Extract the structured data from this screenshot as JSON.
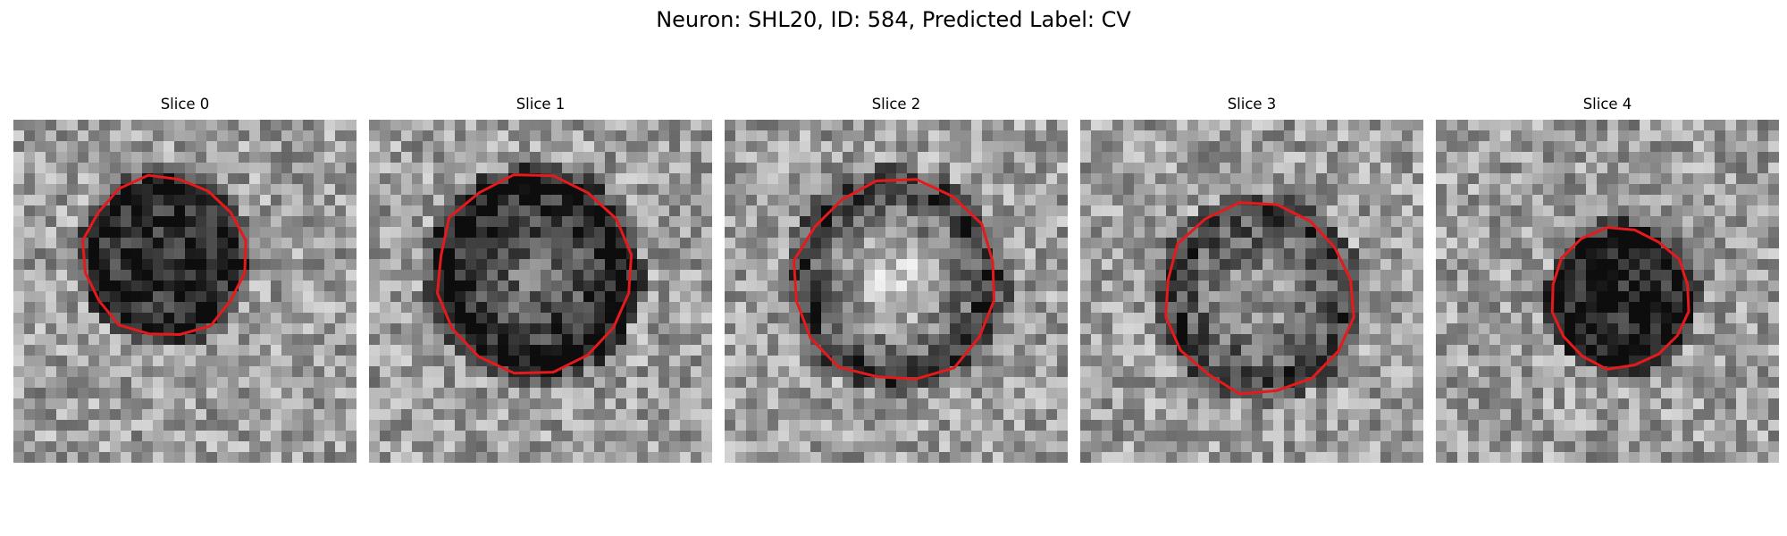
{
  "figure": {
    "title": "Neuron: SHL20, ID: 584, Predicted Label: CV",
    "panels": [
      {
        "title": "Slice 0",
        "center": [
          0.44,
          0.4
        ],
        "radius": 0.23,
        "darkness": 0.65,
        "bright_core": 0.0,
        "seed": 11
      },
      {
        "title": "Slice 1",
        "center": [
          0.48,
          0.45
        ],
        "radius": 0.28,
        "darkness": 0.75,
        "bright_core": 0.45,
        "seed": 23
      },
      {
        "title": "Slice 2",
        "center": [
          0.5,
          0.47
        ],
        "radius": 0.29,
        "darkness": 0.55,
        "bright_core": 0.75,
        "seed": 37
      },
      {
        "title": "Slice 3",
        "center": [
          0.52,
          0.52
        ],
        "radius": 0.27,
        "darkness": 0.5,
        "bright_core": 0.4,
        "seed": 41
      },
      {
        "title": "Slice 4",
        "center": [
          0.54,
          0.52
        ],
        "radius": 0.2,
        "darkness": 0.7,
        "bright_core": 0.0,
        "seed": 59
      }
    ],
    "colors": {
      "contour": "#e41a1c"
    }
  }
}
